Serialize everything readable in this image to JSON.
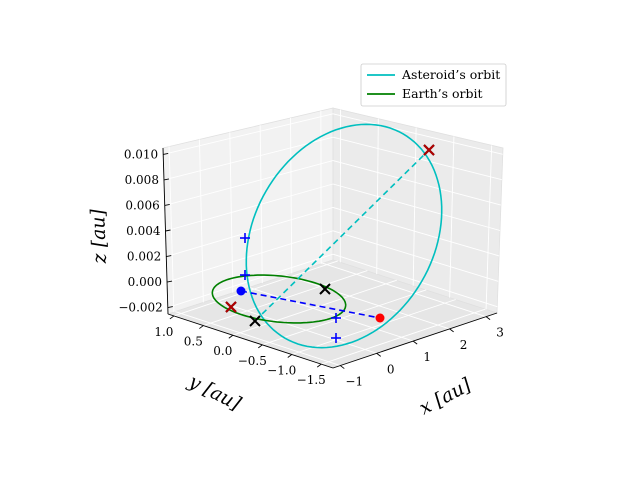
{
  "chart_data": {
    "type": "3d-line",
    "title": "",
    "legend": {
      "placement": "top-right",
      "entries": [
        {
          "label": "Asteroid’s orbit",
          "color": "#00bfbf"
        },
        {
          "label": "Earth’s orbit",
          "color": "#008000"
        }
      ]
    },
    "axes": {
      "x": {
        "label": "x [au]",
        "range": [
          -1.2,
          3.3
        ],
        "ticks": [
          -1,
          0,
          1,
          2,
          3
        ],
        "tick_labels": [
          "−1",
          "0",
          "1",
          "2",
          "3"
        ]
      },
      "y": {
        "label": "y [au]",
        "range": [
          -1.7,
          1.1
        ],
        "ticks": [
          1.0,
          0.5,
          0.0,
          -0.5,
          -1.0,
          -1.5
        ],
        "tick_labels": [
          "1.0",
          "0.5",
          "0.0",
          "−0.5",
          "−1.0",
          "−1.5"
        ]
      },
      "z": {
        "label": "z [au]",
        "range": [
          -0.0025,
          0.0105
        ],
        "ticks": [
          -0.002,
          0.0,
          0.002,
          0.004,
          0.006,
          0.008,
          0.01
        ],
        "tick_labels": [
          "−0.002",
          "0.000",
          "0.002",
          "0.004",
          "0.006",
          "0.008",
          "0.010"
        ]
      },
      "grid": true
    },
    "series": [
      {
        "name": "Asteroid’s orbit",
        "color": "#00bfbf",
        "kind": "ellipse",
        "semi_major_au": 2.0,
        "eccentricity": 0.6,
        "inclination_deg": 0.3,
        "center": [
          1.2,
          -0.2,
          0.0045
        ]
      },
      {
        "name": "Earth’s orbit",
        "color": "#008000",
        "kind": "circle",
        "radius_au": 1.0,
        "center": [
          0,
          0,
          0
        ]
      }
    ],
    "markers": {
      "sun": {
        "color": "#0000ff",
        "point": [
          0,
          0,
          0
        ]
      },
      "red_point": {
        "color": "#ff0000",
        "point": [
          2.6,
          -1.0,
          -0.0005
        ]
      },
      "black_x": [
        [
          -0.5,
          0.9,
          -0.0005
        ],
        [
          -0.8,
          -0.6,
          0
        ],
        [
          0.3,
          -0.3,
          0.0002
        ],
        [
          3.1,
          -0.3,
          0.0105
        ]
      ],
      "red_x": [
        [
          -0.5,
          0.9,
          -0.0005
        ],
        [
          3.1,
          -0.3,
          0.0105
        ]
      ],
      "blue_plus": [
        [
          0.0,
          0.1,
          0.0045
        ],
        [
          0.0,
          0.1,
          0.0015
        ],
        [
          2.0,
          -1.2,
          -0.0005
        ],
        [
          2.2,
          -1.5,
          -0.0018
        ]
      ]
    },
    "dashed_lines": [
      {
        "color": "#0000ff",
        "from": [
          0,
          0,
          0
        ],
        "to": [
          2.6,
          -1.0,
          -0.0005
        ]
      },
      {
        "color": "#00bfbf",
        "from": [
          -0.8,
          -0.6,
          0.0
        ],
        "to": [
          3.1,
          -0.3,
          0.0105
        ]
      }
    ]
  }
}
